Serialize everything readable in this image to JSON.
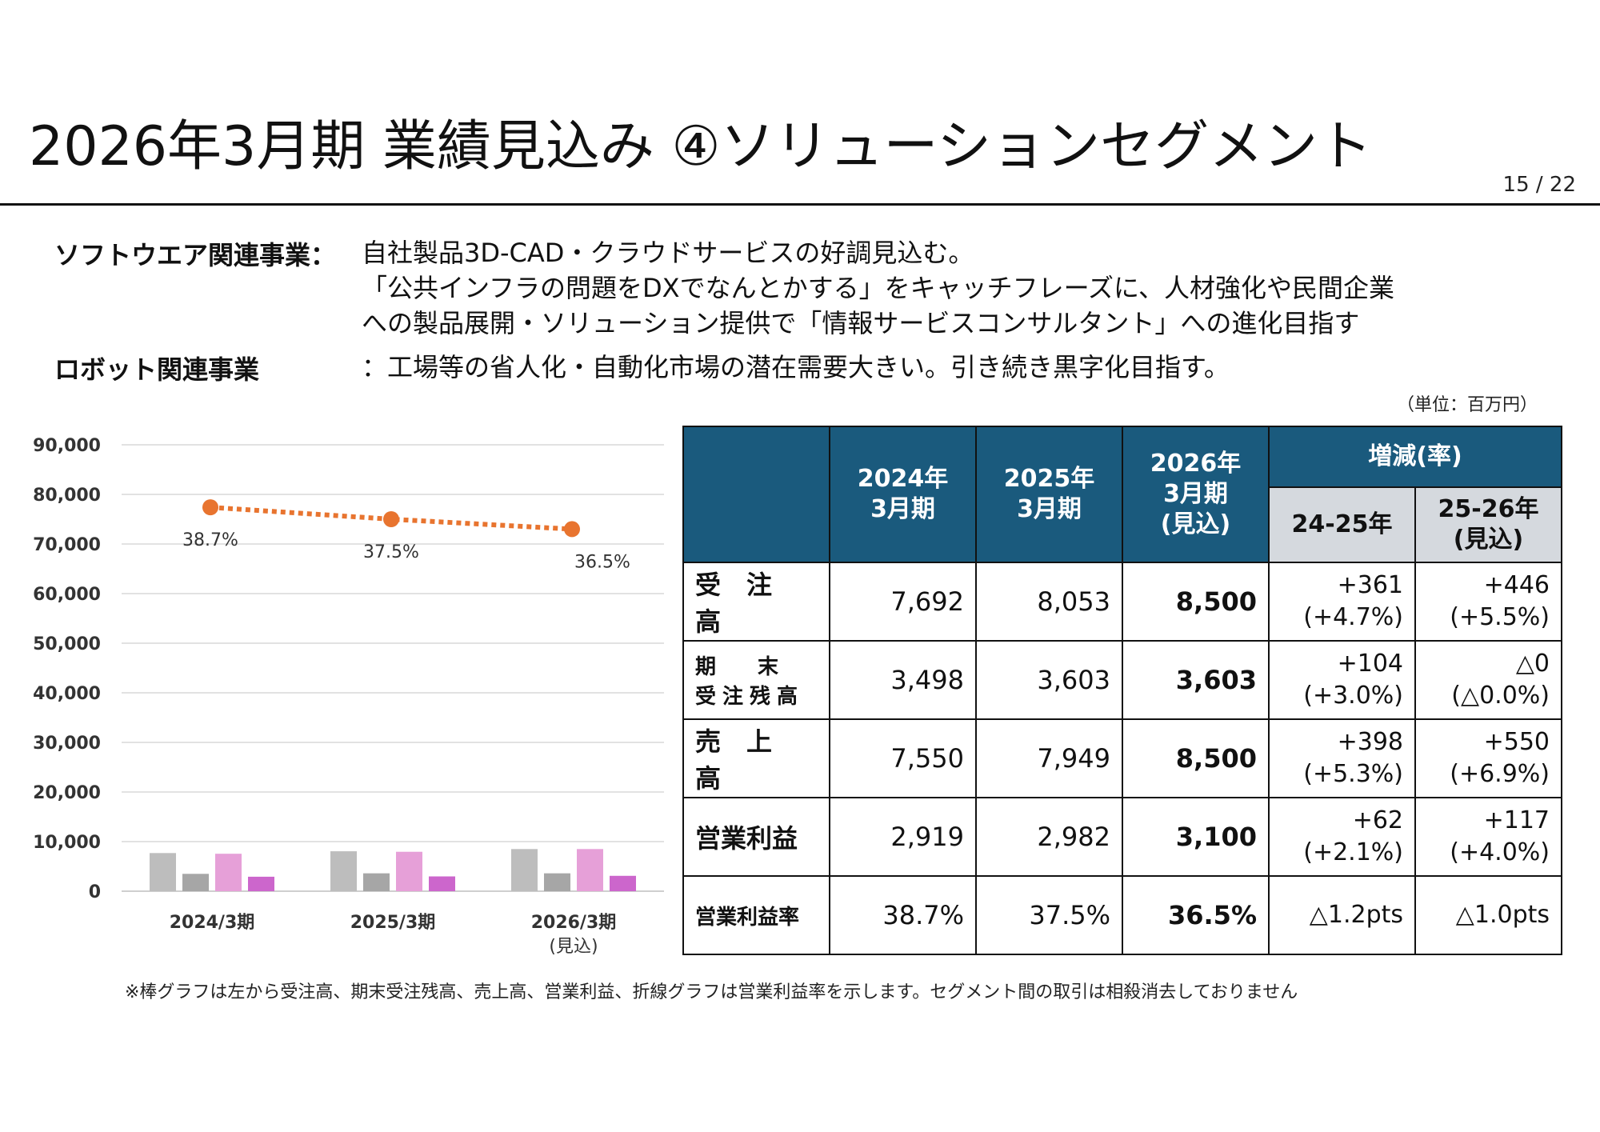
{
  "header": {
    "title": "2026年3月期 業績見込み ④ソリューションセグメント",
    "page_number": "15 / 22"
  },
  "description": [
    {
      "label": "ソフトウエア関連事業",
      "separator": "：",
      "lines": [
        "自社製品3D-CAD・クラウドサービスの好調見込む。",
        "「公共インフラの問題をDXでなんとかする」をキャッチフレーズに、人材強化や民間企業",
        "への製品展開・ソリューション提供で「情報サービスコンサルタント」への進化目指す"
      ]
    },
    {
      "label": "ロボット関連事業",
      "separator": "：",
      "lines": [
        "工場等の省人化・自動化市場の潜在需要大きい。引き続き黒字化目指す。"
      ]
    }
  ],
  "unit_note": "（単位：百万円）",
  "chart_data": {
    "type": "bar",
    "categories": [
      "2024/3期",
      "2025/3期",
      "2026/3期"
    ],
    "category_sublabels": [
      "",
      "",
      "(見込)"
    ],
    "ylim": [
      0,
      90000
    ],
    "yticks": [
      "90,000",
      "80,000",
      "70,000",
      "60,000",
      "50,000",
      "40,000",
      "30,000",
      "20,000",
      "10,000",
      "0"
    ],
    "ytick_values": [
      90000,
      80000,
      70000,
      60000,
      50000,
      40000,
      30000,
      20000,
      10000,
      0
    ],
    "grid": true,
    "series": [
      {
        "values": [
          7692,
          8053,
          8500
        ],
        "color": "#bdbdbd"
      },
      {
        "values": [
          3498,
          3603,
          3603
        ],
        "color": "#a6a6a6"
      },
      {
        "values": [
          7550,
          7949,
          8500
        ],
        "color": "#e6a0d8"
      },
      {
        "values": [
          2919,
          2982,
          3100
        ],
        "color": "#cc66cc"
      }
    ],
    "line_series": {
      "type": "line",
      "style": "dotted",
      "color": "#e8742f",
      "values": [
        38.7,
        37.5,
        36.5
      ],
      "labels": [
        "38.7%",
        "37.5%",
        "36.5%"
      ],
      "ylim": [
        0,
        45
      ]
    }
  },
  "table": {
    "headers": {
      "y2024": [
        "2024年",
        "3月期"
      ],
      "y2025": [
        "2025年",
        "3月期"
      ],
      "y2026": [
        "2026年",
        "3月期",
        "(見込)"
      ],
      "change": "増減(率)",
      "c2425": "24-25年",
      "c2526": [
        "25-26年",
        "(見込)"
      ]
    },
    "rows": [
      {
        "label": "受　注　高",
        "v2024": "7,692",
        "v2025": "8,053",
        "v2026": "8,500",
        "d2425": [
          "+361",
          "(+4.7%)"
        ],
        "d2526": [
          "+446",
          "(+5.5%)"
        ]
      },
      {
        "label_lines": [
          "期　　末",
          "受注残高"
        ],
        "v2024": "3,498",
        "v2025": "3,603",
        "v2026": "3,603",
        "d2425": [
          "+104",
          "(+3.0%)"
        ],
        "d2526": [
          "△0",
          "(△0.0%)"
        ]
      },
      {
        "label": "売　上　高",
        "v2024": "7,550",
        "v2025": "7,949",
        "v2026": "8,500",
        "d2425": [
          "+398",
          "(+5.3%)"
        ],
        "d2526": [
          "+550",
          "(+6.9%)"
        ]
      },
      {
        "label": "営業利益",
        "v2024": "2,919",
        "v2025": "2,982",
        "v2026": "3,100",
        "d2425": [
          "+62",
          "(+2.1%)"
        ],
        "d2526": [
          "+117",
          "(+4.0%)"
        ]
      },
      {
        "label": "営業利益率",
        "v2024": "38.7%",
        "v2025": "37.5%",
        "v2026": "36.5%",
        "d2425": [
          "△1.2pts"
        ],
        "d2526": [
          "△1.0pts"
        ]
      }
    ]
  },
  "footnote": "※棒グラフは左から受注高、期末受注残高、売上高、営業利益、折線グラフは営業利益率を示します。セグメント間の取引は相殺消去しておりません"
}
